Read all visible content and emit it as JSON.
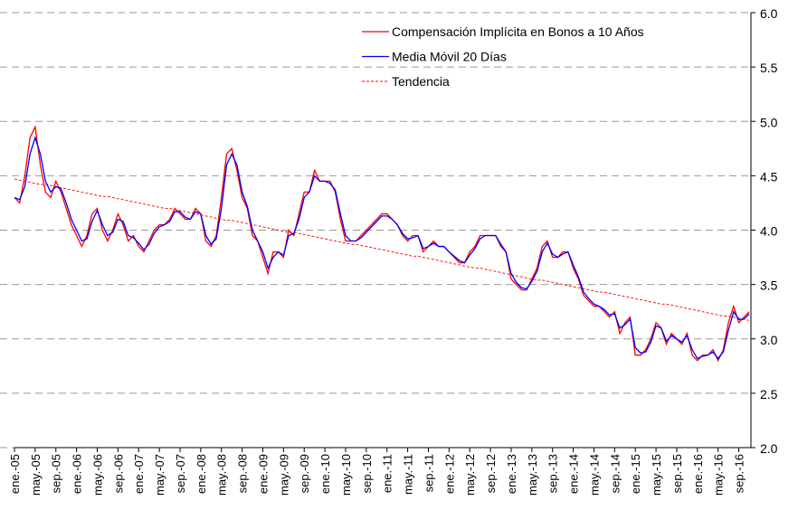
{
  "chart_data": {
    "type": "line",
    "categories": [
      "ene.-05",
      null,
      null,
      null,
      "may.-05",
      null,
      null,
      null,
      "sep.-05",
      null,
      null,
      null,
      "ene.-06",
      null,
      null,
      null,
      "may.-06",
      null,
      null,
      null,
      "sep.-06",
      null,
      null,
      null,
      "ene.-07",
      null,
      null,
      null,
      "may.-07",
      null,
      null,
      null,
      "sep.-07",
      null,
      null,
      null,
      "ene.-08",
      null,
      null,
      null,
      "may.-08",
      null,
      null,
      null,
      "sep.-08",
      null,
      null,
      null,
      "ene.-09",
      null,
      null,
      null,
      "may.-09",
      null,
      null,
      null,
      "sep.-09",
      null,
      null,
      null,
      "ene.-10",
      null,
      null,
      null,
      "may.-10",
      null,
      null,
      null,
      "sep.-10",
      null,
      null,
      null,
      "ene.-11",
      null,
      null,
      null,
      "may.-11",
      null,
      null,
      null,
      "sep.-11",
      null,
      null,
      null,
      "ene.-12",
      null,
      null,
      null,
      "may.-12",
      null,
      null,
      null,
      "sep.-12",
      null,
      null,
      null,
      "ene.-13",
      null,
      null,
      null,
      "may.-13",
      null,
      null,
      null,
      "sep.-13",
      null,
      null,
      null,
      "ene.-14",
      null,
      null,
      null,
      "may.-14",
      null,
      null,
      null,
      "sep.-14",
      null,
      null,
      null,
      "ene.-15",
      null,
      null,
      null,
      "may.-15",
      null,
      null,
      null,
      "sep.-15",
      null,
      null,
      null,
      "ene.-16",
      null,
      null,
      null,
      "may.-16",
      null,
      null,
      null,
      "sep.-16",
      null,
      null
    ],
    "series": [
      {
        "name": "Compensación Implícita en Bonos a 10 Años",
        "color": "#ff0000",
        "values": [
          4.3,
          4.25,
          4.5,
          4.85,
          4.95,
          4.6,
          4.35,
          4.3,
          4.45,
          4.35,
          4.2,
          4.05,
          3.95,
          3.85,
          3.95,
          4.15,
          4.2,
          4.0,
          3.9,
          4.0,
          4.15,
          4.05,
          3.9,
          3.95,
          3.85,
          3.8,
          3.9,
          4.0,
          4.05,
          4.05,
          4.1,
          4.2,
          4.15,
          4.1,
          4.1,
          4.2,
          4.15,
          3.9,
          3.85,
          3.95,
          4.3,
          4.7,
          4.75,
          4.55,
          4.3,
          4.2,
          3.95,
          3.9,
          3.75,
          3.6,
          3.8,
          3.8,
          3.75,
          4.0,
          3.95,
          4.15,
          4.35,
          4.35,
          4.55,
          4.45,
          4.45,
          4.45,
          4.35,
          4.1,
          3.9,
          3.9,
          3.9,
          3.95,
          4.0,
          4.05,
          4.1,
          4.15,
          4.15,
          4.1,
          4.05,
          3.95,
          3.9,
          3.95,
          3.95,
          3.8,
          3.85,
          3.9,
          3.85,
          3.85,
          3.8,
          3.75,
          3.7,
          3.7,
          3.8,
          3.85,
          3.95,
          3.95,
          3.95,
          3.95,
          3.85,
          3.8,
          3.55,
          3.5,
          3.45,
          3.45,
          3.55,
          3.65,
          3.85,
          3.9,
          3.75,
          3.75,
          3.8,
          3.8,
          3.65,
          3.55,
          3.4,
          3.35,
          3.3,
          3.3,
          3.25,
          3.2,
          3.25,
          3.05,
          3.15,
          3.2,
          2.85,
          2.85,
          2.9,
          3.0,
          3.15,
          3.1,
          2.95,
          3.05,
          3.0,
          2.95,
          3.05,
          2.85,
          2.8,
          2.85,
          2.85,
          2.9,
          2.8,
          2.9,
          3.15,
          3.3,
          3.15,
          3.2,
          3.25
        ]
      },
      {
        "name": "Media Móvil 20 Días",
        "color": "#0000ff",
        "values": [
          4.3,
          4.28,
          4.4,
          4.7,
          4.85,
          4.7,
          4.45,
          4.35,
          4.4,
          4.38,
          4.25,
          4.1,
          4.0,
          3.9,
          3.92,
          4.08,
          4.18,
          4.05,
          3.95,
          3.98,
          4.1,
          4.08,
          3.95,
          3.93,
          3.88,
          3.82,
          3.87,
          3.97,
          4.03,
          4.05,
          4.08,
          4.17,
          4.17,
          4.12,
          4.1,
          4.17,
          4.15,
          3.95,
          3.87,
          3.92,
          4.2,
          4.6,
          4.7,
          4.6,
          4.35,
          4.22,
          4.0,
          3.9,
          3.8,
          3.65,
          3.75,
          3.8,
          3.77,
          3.95,
          3.97,
          4.1,
          4.3,
          4.35,
          4.5,
          4.45,
          4.45,
          4.43,
          4.37,
          4.15,
          3.95,
          3.9,
          3.9,
          3.93,
          3.98,
          4.03,
          4.08,
          4.13,
          4.13,
          4.1,
          4.05,
          3.97,
          3.92,
          3.93,
          3.95,
          3.83,
          3.85,
          3.88,
          3.85,
          3.85,
          3.8,
          3.76,
          3.72,
          3.7,
          3.77,
          3.83,
          3.92,
          3.95,
          3.95,
          3.95,
          3.87,
          3.8,
          3.6,
          3.52,
          3.47,
          3.46,
          3.53,
          3.62,
          3.8,
          3.88,
          3.78,
          3.75,
          3.78,
          3.8,
          3.68,
          3.57,
          3.43,
          3.37,
          3.32,
          3.3,
          3.27,
          3.22,
          3.23,
          3.1,
          3.13,
          3.18,
          2.92,
          2.87,
          2.88,
          2.97,
          3.12,
          3.1,
          2.98,
          3.03,
          3.0,
          2.97,
          3.03,
          2.9,
          2.82,
          2.84,
          2.85,
          2.88,
          2.82,
          2.88,
          3.08,
          3.25,
          3.18,
          3.18,
          3.23
        ]
      },
      {
        "name": "Tendencia",
        "color": "#ff0000",
        "dashed": true,
        "values": [
          4.47,
          4.46,
          4.45,
          4.44,
          4.43,
          4.42,
          4.42,
          4.41,
          4.4,
          4.39,
          4.38,
          4.37,
          4.36,
          4.35,
          4.34,
          4.33,
          4.32,
          4.31,
          4.31,
          4.3,
          4.29,
          4.28,
          4.27,
          4.26,
          4.25,
          4.24,
          4.23,
          4.22,
          4.21,
          4.2,
          4.2,
          4.19,
          4.18,
          4.17,
          4.16,
          4.15,
          4.14,
          4.13,
          4.12,
          4.11,
          4.1,
          4.09,
          4.09,
          4.08,
          4.07,
          4.06,
          4.05,
          4.04,
          4.03,
          4.02,
          4.01,
          4.0,
          3.99,
          3.98,
          3.98,
          3.97,
          3.96,
          3.95,
          3.94,
          3.93,
          3.92,
          3.91,
          3.9,
          3.89,
          3.88,
          3.87,
          3.87,
          3.86,
          3.85,
          3.84,
          3.83,
          3.82,
          3.81,
          3.8,
          3.79,
          3.78,
          3.77,
          3.76,
          3.76,
          3.75,
          3.74,
          3.73,
          3.72,
          3.71,
          3.7,
          3.69,
          3.68,
          3.67,
          3.66,
          3.65,
          3.65,
          3.64,
          3.63,
          3.62,
          3.61,
          3.6,
          3.59,
          3.58,
          3.57,
          3.56,
          3.55,
          3.54,
          3.54,
          3.53,
          3.52,
          3.51,
          3.5,
          3.49,
          3.48,
          3.47,
          3.46,
          3.45,
          3.44,
          3.43,
          3.43,
          3.42,
          3.41,
          3.4,
          3.39,
          3.38,
          3.37,
          3.36,
          3.35,
          3.34,
          3.33,
          3.32,
          3.32,
          3.31,
          3.3,
          3.29,
          3.28,
          3.27,
          3.26,
          3.25,
          3.24,
          3.23,
          3.22,
          3.21,
          3.21,
          3.2,
          3.19,
          3.18,
          3.17
        ]
      }
    ],
    "ylim": [
      2,
      6
    ],
    "yticks": [
      {
        "value": 2,
        "label": "2.0"
      },
      {
        "value": 2.5,
        "label": "2.5"
      },
      {
        "value": 3,
        "label": "3.0"
      },
      {
        "value": 3.5,
        "label": "3.5"
      },
      {
        "value": 4,
        "label": "4.0"
      },
      {
        "value": 4.5,
        "label": "4.5"
      },
      {
        "value": 5,
        "label": "5.0"
      },
      {
        "value": 5.5,
        "label": "5.5"
      },
      {
        "value": 6,
        "label": "6.0"
      }
    ],
    "grid": true,
    "legend": "top-center"
  }
}
